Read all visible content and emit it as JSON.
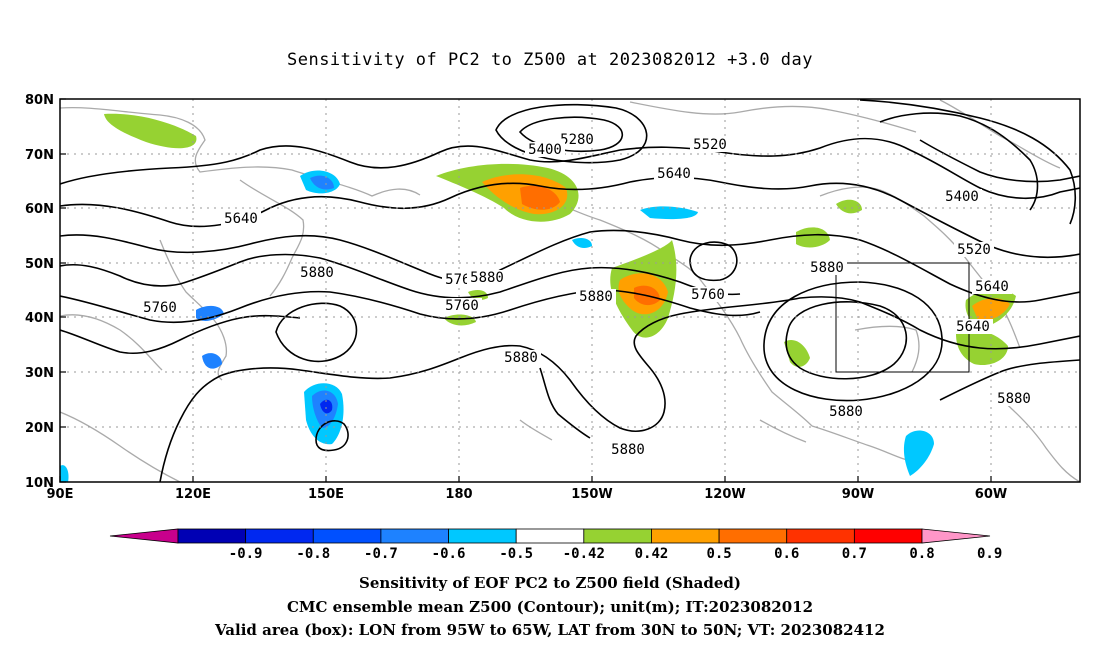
{
  "title": "Sensitivity of PC2 to Z500 at 2023082012 +3.0 day",
  "map": {
    "lon_labels": [
      "90E",
      "120E",
      "150E",
      "180",
      "150W",
      "120W",
      "90W",
      "60W"
    ],
    "lat_labels": [
      "80N",
      "70N",
      "60N",
      "50N",
      "40N",
      "30N",
      "20N",
      "10N"
    ],
    "contour_labels": [
      "5280",
      "5400",
      "5520",
      "5640",
      "5400",
      "5640",
      "5520",
      "5880",
      "5640",
      "5880",
      "5760",
      "5760",
      "5880",
      "5640",
      "5760",
      "5760",
      "5880",
      "5880",
      "5880",
      "5880",
      "5880"
    ],
    "valid_box": {
      "lon_west": "95W",
      "lon_east": "65W",
      "lat_south": "30N",
      "lat_north": "50N"
    },
    "colors": {
      "land": "#aaaaaa",
      "contour": "#000000",
      "grid": "#999999"
    }
  },
  "colorbar": {
    "labels": [
      "-0.9",
      "-0.8",
      "-0.7",
      "-0.6",
      "-0.5",
      "-0.42",
      "0.42",
      "0.5",
      "0.6",
      "0.7",
      "0.8",
      "0.9"
    ],
    "colors": [
      "#c8008c",
      "#0000b4",
      "#0028f0",
      "#0050ff",
      "#1e82ff",
      "#00c8ff",
      "#ffffff",
      "#96d232",
      "#ffa000",
      "#ff6e00",
      "#ff3200",
      "#ff0000",
      "#ff96c8"
    ]
  },
  "captions": {
    "line1": "Sensitivity of EOF PC2 to Z500 field (Shaded)",
    "line2": "CMC ensemble mean Z500 (Contour); unit(m); IT:2023082012",
    "line3": "Valid area (box): LON from 95W to 65W, LAT from 30N to 50N; VT: 2023082412"
  }
}
